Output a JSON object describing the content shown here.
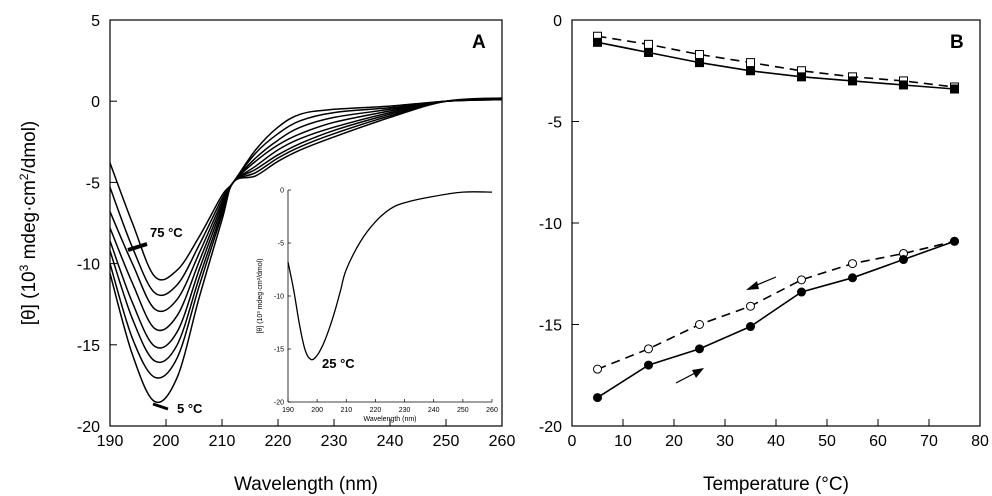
{
  "chart_data": [
    {
      "panel": "A",
      "type": "line",
      "xlabel": "Wavelength (nm)",
      "ylabel_prefix": "[θ] (10",
      "ylabel_sup1": "3",
      "ylabel_mid": " mdeg·cm",
      "ylabel_sup2": "2",
      "ylabel_suffix": "/dmol)",
      "xlim": [
        190,
        260
      ],
      "ylim": [
        -20,
        5
      ],
      "xticks": [
        190,
        200,
        210,
        220,
        230,
        240,
        250,
        260
      ],
      "yticks": [
        -20,
        -15,
        -10,
        -5,
        0,
        5
      ],
      "annotations": [
        "75 °C",
        "5 °C"
      ],
      "series": [
        {
          "x": [
            190,
            194,
            198,
            202,
            206,
            210,
            212,
            216,
            220,
            224,
            230,
            240,
            250,
            260
          ],
          "values": [
            -3.8,
            -7.5,
            -10.8,
            -10.4,
            -8.3,
            -5.8,
            -5.0,
            -3.0,
            -1.6,
            -0.8,
            -0.5,
            -0.3,
            0,
            0.1
          ]
        },
        {
          "x": [
            190,
            194,
            198,
            202,
            206,
            210,
            212,
            216,
            220,
            224,
            230,
            240,
            250,
            260
          ],
          "values": [
            -5.3,
            -9.0,
            -11.8,
            -11.3,
            -8.8,
            -6.0,
            -5.0,
            -3.2,
            -2.0,
            -1.2,
            -0.7,
            -0.4,
            0,
            0.1
          ]
        },
        {
          "x": [
            190,
            194,
            198,
            202,
            206,
            210,
            212,
            216,
            220,
            224,
            230,
            240,
            250,
            260
          ],
          "values": [
            -6.8,
            -10.0,
            -12.8,
            -12.2,
            -9.3,
            -6.2,
            -5.0,
            -3.5,
            -2.4,
            -1.6,
            -1.0,
            -0.5,
            0,
            0.1
          ]
        },
        {
          "x": [
            190,
            194,
            198,
            202,
            206,
            210,
            212,
            216,
            220,
            224,
            230,
            240,
            250,
            260
          ],
          "values": [
            -7.8,
            -11.2,
            -14.0,
            -13.2,
            -9.8,
            -6.4,
            -5.0,
            -3.7,
            -2.7,
            -2.0,
            -1.3,
            -0.6,
            0,
            0.1
          ]
        },
        {
          "x": [
            190,
            194,
            198,
            202,
            206,
            210,
            212,
            216,
            220,
            224,
            230,
            240,
            250,
            260
          ],
          "values": [
            -8.6,
            -12.4,
            -15.1,
            -14.2,
            -10.3,
            -6.6,
            -5.0,
            -4.0,
            -3.0,
            -2.3,
            -1.6,
            -0.7,
            0,
            0.1
          ]
        },
        {
          "x": [
            190,
            194,
            198,
            202,
            206,
            210,
            212,
            216,
            220,
            224,
            230,
            240,
            250,
            260
          ],
          "values": [
            -9.2,
            -13.4,
            -16.0,
            -15.0,
            -10.8,
            -6.8,
            -5.0,
            -4.2,
            -3.3,
            -2.6,
            -1.8,
            -0.8,
            0,
            0.1
          ]
        },
        {
          "x": [
            190,
            194,
            198,
            202,
            206,
            210,
            212,
            216,
            220,
            224,
            230,
            240,
            250,
            260
          ],
          "values": [
            -10.0,
            -14.6,
            -17.0,
            -15.8,
            -11.3,
            -7.0,
            -5.0,
            -4.4,
            -3.5,
            -2.8,
            -2.0,
            -0.9,
            0,
            0.1
          ]
        },
        {
          "x": [
            190,
            194,
            198,
            202,
            206,
            210,
            212,
            216,
            220,
            224,
            230,
            240,
            250,
            260
          ],
          "values": [
            -10.6,
            -15.6,
            -18.5,
            -17.0,
            -12.0,
            -7.3,
            -5.0,
            -4.6,
            -3.7,
            -3.0,
            -2.2,
            -1.0,
            0,
            0.2
          ]
        }
      ],
      "inset": {
        "xlabel": "Wavelength (nm)",
        "ylabel": "[θ] (10³ mdeg·cm²/dmol)",
        "xlim": [
          190,
          260
        ],
        "ylim": [
          -20,
          0
        ],
        "xticks": [
          190,
          200,
          210,
          220,
          230,
          240,
          250,
          260
        ],
        "yticks": [
          -20,
          -15,
          -10,
          -5,
          0
        ],
        "annotation": "25 °C",
        "x": [
          190,
          192,
          194,
          196,
          198,
          200,
          202,
          204,
          206,
          208,
          210,
          215,
          220,
          225,
          230,
          240,
          250,
          260
        ],
        "values": [
          -6.8,
          -9.5,
          -12.8,
          -15.2,
          -16.0,
          -15.6,
          -14.6,
          -13.2,
          -11.5,
          -9.5,
          -7.5,
          -4.8,
          -3.0,
          -1.8,
          -1.2,
          -0.6,
          -0.2,
          -0.2
        ]
      }
    },
    {
      "panel": "B",
      "type": "line",
      "xlabel": "Temperature (°C)",
      "xlim": [
        0,
        80
      ],
      "ylim": [
        -20,
        0
      ],
      "xticks": [
        0,
        10,
        20,
        30,
        40,
        50,
        60,
        70,
        80
      ],
      "yticks": [
        -20,
        -15,
        -10,
        -5,
        0
      ],
      "series": [
        {
          "marker": "square-open",
          "line": "dashed",
          "x": [
            5,
            15,
            25,
            35,
            45,
            55,
            65,
            75
          ],
          "values": [
            -0.8,
            -1.2,
            -1.7,
            -2.1,
            -2.5,
            -2.8,
            -3.0,
            -3.3
          ]
        },
        {
          "marker": "square-filled",
          "line": "solid",
          "x": [
            5,
            15,
            25,
            35,
            45,
            55,
            65,
            75
          ],
          "values": [
            -1.1,
            -1.6,
            -2.1,
            -2.5,
            -2.8,
            -3.0,
            -3.2,
            -3.4
          ]
        },
        {
          "marker": "circle-open",
          "line": "dashed",
          "x": [
            5,
            15,
            25,
            35,
            45,
            55,
            65,
            75
          ],
          "values": [
            -17.2,
            -16.2,
            -15.0,
            -14.1,
            -12.8,
            -12.0,
            -11.5,
            -10.9
          ]
        },
        {
          "marker": "circle-filled",
          "line": "solid",
          "x": [
            5,
            15,
            25,
            35,
            45,
            55,
            65,
            75
          ],
          "values": [
            -18.6,
            -17.0,
            -16.2,
            -15.1,
            -13.4,
            -12.7,
            -11.8,
            -10.9
          ]
        }
      ]
    }
  ]
}
